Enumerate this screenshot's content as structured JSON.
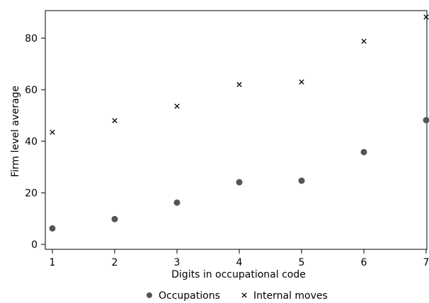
{
  "chart_data": {
    "type": "scatter",
    "title": "",
    "xlabel": "Digits in occupational code",
    "ylabel": "Firm level average",
    "xlim": [
      1,
      7
    ],
    "ylim": [
      -2,
      90
    ],
    "x_ticks": [
      1,
      2,
      3,
      4,
      5,
      6,
      7
    ],
    "y_ticks": [
      0,
      20,
      40,
      60,
      80
    ],
    "grid": false,
    "legend_position": "bottom",
    "series": [
      {
        "name": "Occupations",
        "marker": "circle",
        "color": "#555555",
        "x": [
          1,
          2,
          3,
          4,
          5,
          6,
          7
        ],
        "y": [
          6.2,
          9.8,
          16.2,
          24.1,
          24.7,
          35.8,
          48.2
        ]
      },
      {
        "name": "Internal moves",
        "marker": "x",
        "color": "#000000",
        "x": [
          1,
          2,
          3,
          4,
          5,
          6,
          7
        ],
        "y": [
          43.5,
          48.0,
          53.6,
          62.0,
          63.0,
          78.8,
          88.2
        ]
      }
    ]
  }
}
